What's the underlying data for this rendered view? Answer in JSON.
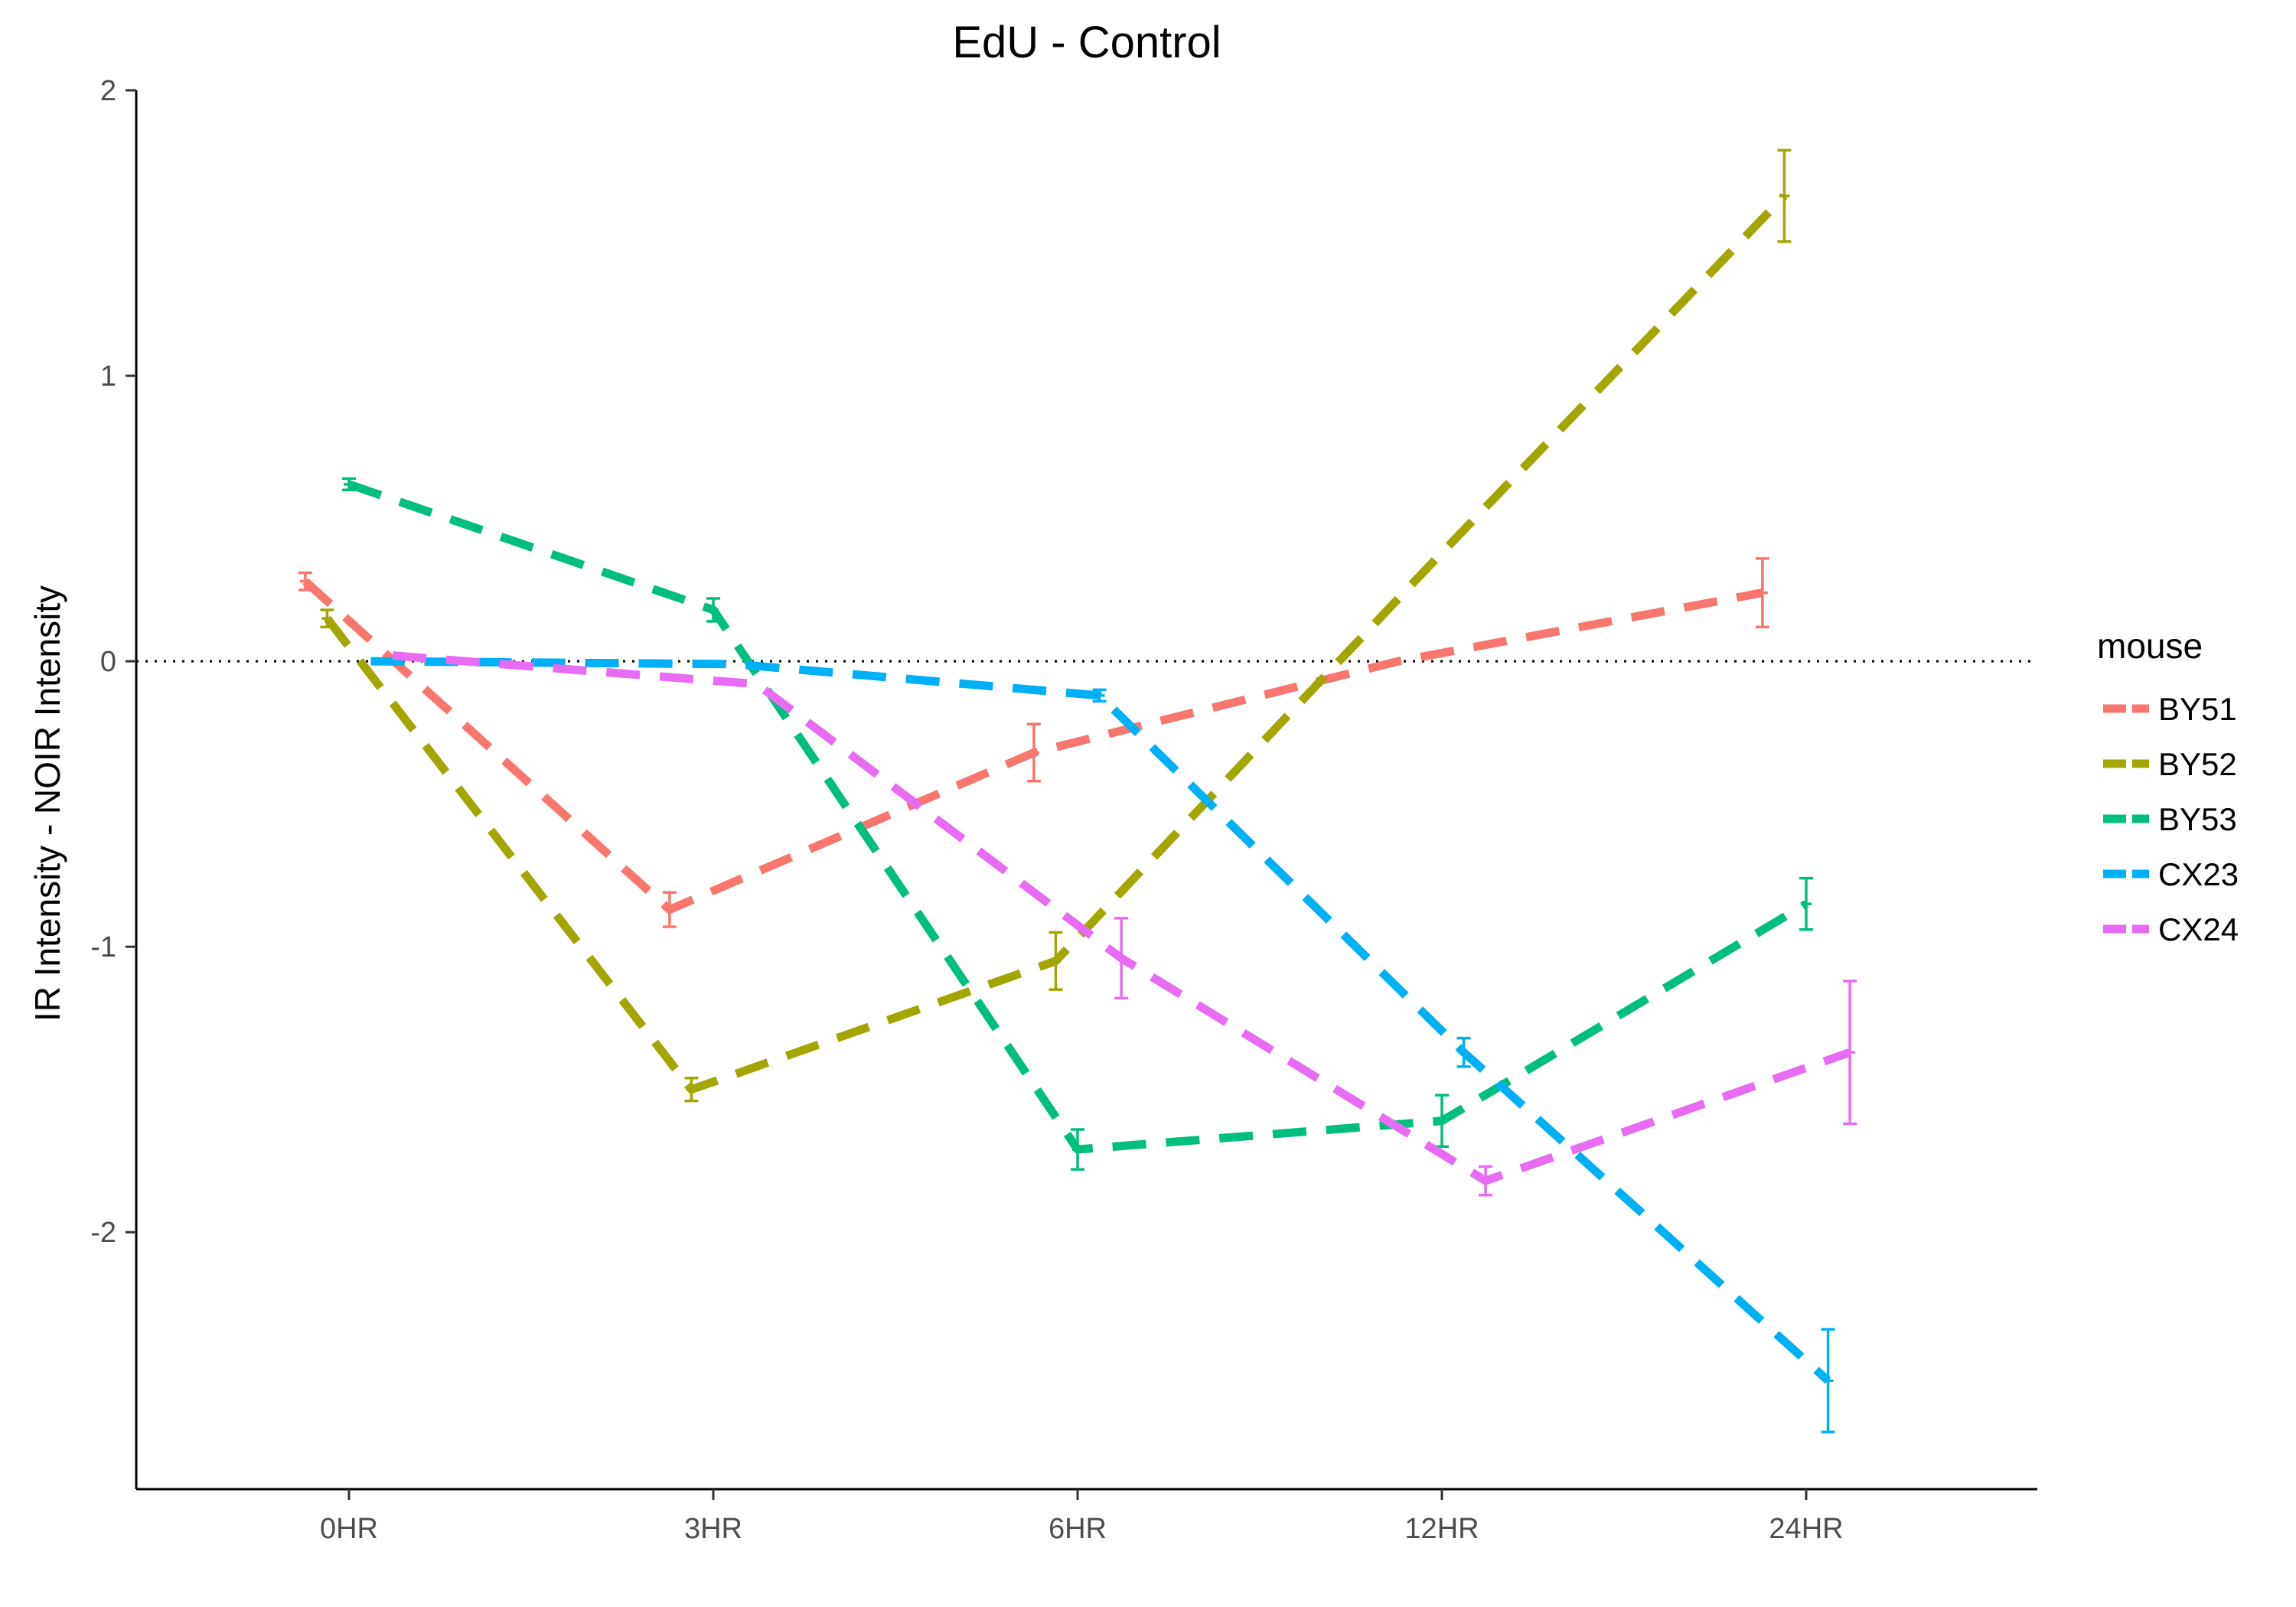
{
  "chart_data": {
    "type": "line",
    "title": "EdU - Control",
    "xlabel": "",
    "ylabel": "IR Intensity - NOIR Intensity",
    "categories": [
      "0HR",
      "3HR",
      "6HR",
      "12HR",
      "24HR"
    ],
    "y_ticks": [
      "-2",
      "-1",
      "0",
      "1",
      "2"
    ],
    "ylim": [
      -2.9,
      2.0
    ],
    "reference_line": 0,
    "grid": false,
    "legend": {
      "title": "mouse",
      "position": "right"
    },
    "series": [
      {
        "name": "BY51",
        "color": "#F8766D",
        "dodge": -0.12,
        "values": [
          0.28,
          -0.87,
          -0.32,
          0.0,
          0.24
        ],
        "errors": [
          0.03,
          0.06,
          0.1,
          null,
          0.12
        ]
      },
      {
        "name": "BY52",
        "color": "#A3A500",
        "dodge": -0.06,
        "values": [
          0.15,
          -1.5,
          -1.05,
          0.3,
          1.63
        ],
        "errors": [
          0.03,
          0.04,
          0.1,
          null,
          0.16
        ]
      },
      {
        "name": "BY53",
        "color": "#00BF7D",
        "dodge": 0.0,
        "values": [
          0.62,
          0.18,
          -1.71,
          -1.61,
          -0.85
        ],
        "errors": [
          0.02,
          0.04,
          0.07,
          0.09,
          0.09
        ]
      },
      {
        "name": "CX23",
        "color": "#00B0F6",
        "dodge": 0.06,
        "values": [
          0.0,
          -0.01,
          -0.12,
          -1.37,
          -2.52
        ],
        "errors": [
          null,
          null,
          0.02,
          0.05,
          0.18
        ]
      },
      {
        "name": "CX24",
        "color": "#E76BF3",
        "dodge": 0.12,
        "values": [
          0.02,
          -0.08,
          -1.04,
          -1.82,
          -1.37
        ],
        "errors": [
          null,
          null,
          0.14,
          0.05,
          0.25
        ]
      }
    ]
  }
}
